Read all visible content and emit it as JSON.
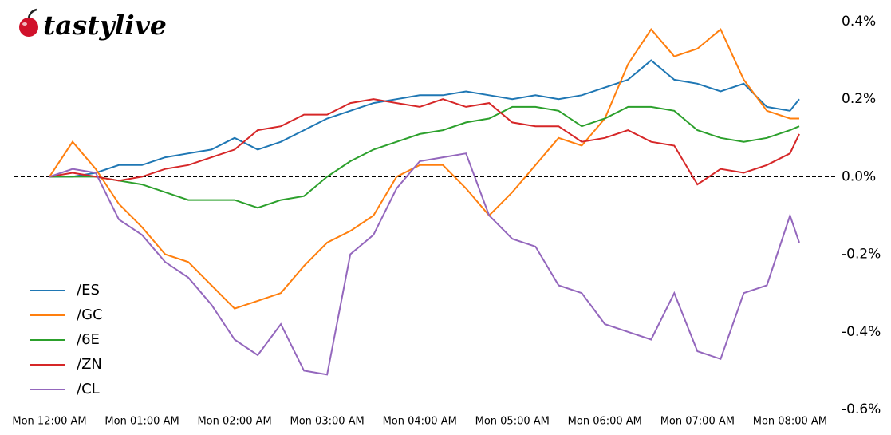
{
  "brand": "tastylive",
  "chart_data": {
    "type": "line",
    "x": [
      0,
      0.25,
      0.5,
      0.75,
      1,
      1.25,
      1.5,
      1.75,
      2,
      2.25,
      2.5,
      2.75,
      3,
      3.25,
      3.5,
      3.75,
      4,
      4.25,
      4.5,
      4.75,
      5,
      5.25,
      5.5,
      5.75,
      6,
      6.25,
      6.5,
      6.75,
      7,
      7.25,
      7.5,
      7.75,
      8,
      8.1
    ],
    "series": [
      {
        "name": "/ES",
        "color": "#1f77b4",
        "values": [
          0,
          0,
          0.01,
          0.03,
          0.03,
          0.05,
          0.06,
          0.07,
          0.1,
          0.07,
          0.09,
          0.12,
          0.15,
          0.17,
          0.19,
          0.2,
          0.21,
          0.21,
          0.22,
          0.21,
          0.2,
          0.21,
          0.2,
          0.21,
          0.23,
          0.25,
          0.3,
          0.25,
          0.24,
          0.22,
          0.24,
          0.18,
          0.17,
          0.2
        ]
      },
      {
        "name": "/GC",
        "color": "#ff7f0e",
        "values": [
          0,
          0.09,
          0.02,
          -0.07,
          -0.13,
          -0.2,
          -0.22,
          -0.28,
          -0.34,
          -0.32,
          -0.3,
          -0.23,
          -0.17,
          -0.14,
          -0.1,
          0,
          0.03,
          0.03,
          -0.03,
          -0.1,
          -0.04,
          0.03,
          0.1,
          0.08,
          0.15,
          0.29,
          0.38,
          0.31,
          0.33,
          0.38,
          0.25,
          0.17,
          0.15,
          0.15
        ]
      },
      {
        "name": "/6E",
        "color": "#2ca02c",
        "values": [
          0,
          0,
          0,
          -0.01,
          -0.02,
          -0.04,
          -0.06,
          -0.06,
          -0.06,
          -0.08,
          -0.06,
          -0.05,
          0,
          0.04,
          0.07,
          0.09,
          0.11,
          0.12,
          0.14,
          0.15,
          0.18,
          0.18,
          0.17,
          0.13,
          0.15,
          0.18,
          0.18,
          0.17,
          0.12,
          0.1,
          0.09,
          0.1,
          0.12,
          0.13
        ]
      },
      {
        "name": "/ZN",
        "color": "#d62728",
        "values": [
          0,
          0.01,
          0,
          -0.01,
          0,
          0.02,
          0.03,
          0.05,
          0.07,
          0.12,
          0.13,
          0.16,
          0.16,
          0.19,
          0.2,
          0.19,
          0.18,
          0.2,
          0.18,
          0.19,
          0.14,
          0.13,
          0.13,
          0.09,
          0.1,
          0.12,
          0.09,
          0.08,
          -0.02,
          0.02,
          0.01,
          0.03,
          0.06,
          0.11
        ]
      },
      {
        "name": "/CL",
        "color": "#9467bd",
        "values": [
          0,
          0.02,
          0.01,
          -0.11,
          -0.15,
          -0.22,
          -0.26,
          -0.33,
          -0.42,
          -0.46,
          -0.38,
          -0.5,
          -0.51,
          -0.2,
          -0.15,
          -0.03,
          0.04,
          0.05,
          0.06,
          -0.1,
          -0.16,
          -0.18,
          -0.28,
          -0.3,
          -0.38,
          -0.4,
          -0.42,
          -0.3,
          -0.45,
          -0.47,
          -0.3,
          -0.28,
          -0.1,
          -0.17
        ]
      }
    ],
    "xlim": [
      0,
      8.1
    ],
    "xticks": [
      {
        "value": 0,
        "label": "Mon 12:00 AM"
      },
      {
        "value": 1,
        "label": "Mon 01:00 AM"
      },
      {
        "value": 2,
        "label": "Mon 02:00 AM"
      },
      {
        "value": 3,
        "label": "Mon 03:00 AM"
      },
      {
        "value": 4,
        "label": "Mon 04:00 AM"
      },
      {
        "value": 5,
        "label": "Mon 05:00 AM"
      },
      {
        "value": 6,
        "label": "Mon 06:00 AM"
      },
      {
        "value": 7,
        "label": "Mon 07:00 AM"
      },
      {
        "value": 8,
        "label": "Mon 08:00 AM"
      }
    ],
    "ylim": [
      -0.6,
      0.4
    ],
    "yticks": [
      {
        "value": 0.4,
        "label": "0.4%"
      },
      {
        "value": 0.2,
        "label": "0.2%"
      },
      {
        "value": 0,
        "label": "0.0%"
      },
      {
        "value": -0.2,
        "label": "-0.2%"
      },
      {
        "value": -0.4,
        "label": "-0.4%"
      },
      {
        "value": -0.6,
        "label": "-0.6%"
      }
    ],
    "zero_line": true,
    "legend": "lower left"
  }
}
